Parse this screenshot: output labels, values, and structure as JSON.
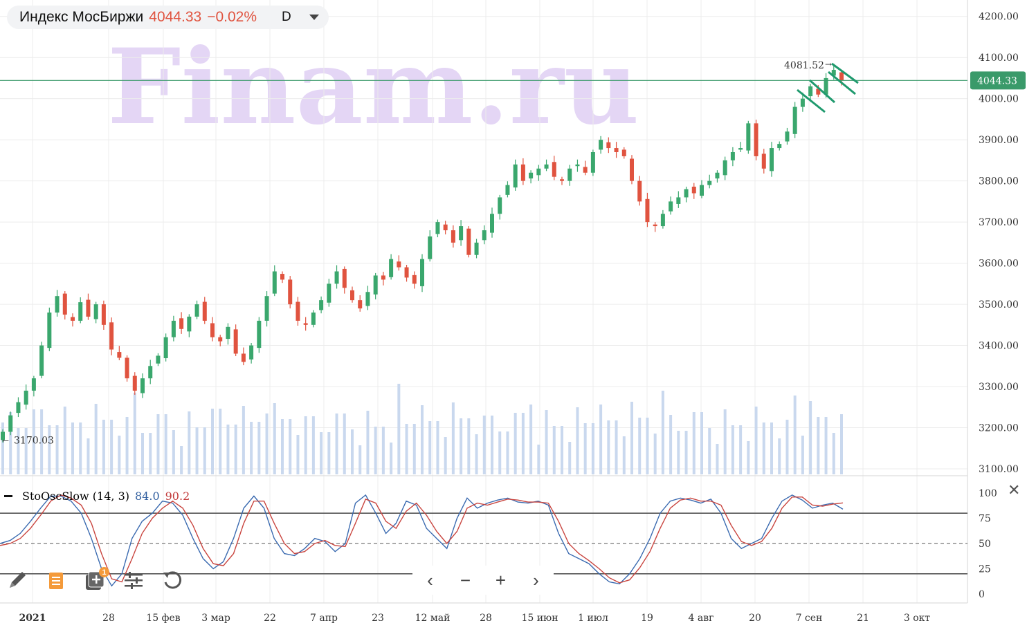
{
  "header": {
    "name": "Индекс МосБиржи",
    "price": "4044.33",
    "change": "−0.02%",
    "period": "D"
  },
  "colors": {
    "up": "#3aa76d",
    "down": "#e0533f",
    "volume": "#c9d8ee",
    "watermark": "#e4d6f5",
    "price_line": "#3a9a6a",
    "k_line": "#3a6ab0",
    "d_line": "#c9453f"
  },
  "watermark": "Finam.ru",
  "annotations": {
    "last_price_badge": "4044.33",
    "high_label": "4081.52",
    "low_label": "3170.03"
  },
  "indicator": {
    "name": "StoOscSlow (14, 3)",
    "k_value": "84.0",
    "d_value": "90.2"
  },
  "toolbar": {
    "icons": [
      "pencil-icon",
      "notes-icon",
      "add-indicator-icon",
      "settings-sliders-icon",
      "reset-icon"
    ],
    "badge": "1"
  },
  "nav": {
    "prev": "‹",
    "zoom_out": "−",
    "zoom_in": "+",
    "next": "›"
  },
  "chart_data": [
    {
      "type": "candlestick",
      "series_values": "daily index closes, approx.",
      "y_axis": {
        "ticks": [
          4200,
          4100,
          4000,
          3900,
          3800,
          3700,
          3600,
          3500,
          3400,
          3300,
          3200,
          3100
        ],
        "range": [
          3090,
          4210
        ]
      },
      "x_axis": {
        "ticks": [
          "2021",
          "28",
          "15 фев",
          "3 мар",
          "22",
          "7 апр",
          "23",
          "12 май",
          "28",
          "15 июн",
          "1 июл",
          "19",
          "4 авг",
          "20",
          "7 сен",
          "21",
          "3 окт"
        ]
      },
      "grid": true,
      "closes": [
        3190,
        3230,
        3262,
        3290,
        3320,
        3400,
        3480,
        3520,
        3475,
        3460,
        3505,
        3470,
        3500,
        3450,
        3390,
        3370,
        3320,
        3290,
        3320,
        3350,
        3375,
        3420,
        3460,
        3440,
        3470,
        3500,
        3460,
        3420,
        3410,
        3445,
        3380,
        3360,
        3400,
        3460,
        3520,
        3580,
        3560,
        3500,
        3460,
        3450,
        3480,
        3510,
        3550,
        3580,
        3540,
        3510,
        3490,
        3530,
        3570,
        3560,
        3610,
        3590,
        3565,
        3550,
        3610,
        3665,
        3700,
        3680,
        3650,
        3690,
        3620,
        3650,
        3680,
        3720,
        3760,
        3790,
        3840,
        3800,
        3820,
        3830,
        3840,
        3810,
        3800,
        3830,
        3840,
        3820,
        3870,
        3900,
        3880,
        3870,
        3860,
        3800,
        3750,
        3700,
        3690,
        3720,
        3750,
        3760,
        3780,
        3770,
        3790,
        3800,
        3820,
        3850,
        3870,
        3880,
        3940,
        3860,
        3830,
        3880,
        3890,
        3920,
        3980,
        4000,
        4030,
        4010,
        4050,
        4070,
        4044
      ]
    },
    {
      "type": "line",
      "title": "StoOscSlow (14, 3)",
      "y_axis": {
        "ticks": [
          100,
          75,
          50,
          25,
          0
        ],
        "range": [
          -10,
          108
        ]
      },
      "reference_lines": [
        80,
        50,
        20
      ],
      "series": [
        {
          "name": "%K",
          "values": [
            50,
            53,
            60,
            72,
            85,
            97,
            97,
            92,
            80,
            55,
            25,
            8,
            20,
            55,
            72,
            80,
            92,
            90,
            78,
            55,
            35,
            25,
            32,
            55,
            85,
            97,
            85,
            55,
            40,
            38,
            45,
            55,
            52,
            42,
            50,
            90,
            98,
            80,
            60,
            70,
            92,
            88,
            65,
            55,
            45,
            75,
            95,
            85,
            90,
            93,
            95,
            91,
            90,
            92,
            88,
            60,
            40,
            35,
            30,
            20,
            12,
            10,
            20,
            35,
            55,
            80,
            92,
            95,
            93,
            90,
            94,
            80,
            55,
            45,
            50,
            55,
            75,
            92,
            98,
            93,
            85,
            88,
            90,
            84
          ]
        },
        {
          "name": "%D",
          "values": [
            48,
            50,
            55,
            65,
            78,
            92,
            98,
            95,
            88,
            70,
            40,
            15,
            12,
            35,
            60,
            75,
            85,
            92,
            85,
            68,
            45,
            30,
            28,
            40,
            70,
            92,
            92,
            70,
            50,
            40,
            42,
            50,
            53,
            48,
            47,
            70,
            94,
            90,
            72,
            65,
            82,
            90,
            78,
            62,
            50,
            62,
            85,
            90,
            88,
            91,
            94,
            93,
            91,
            91,
            90,
            72,
            50,
            40,
            33,
            25,
            16,
            11,
            14,
            26,
            42,
            65,
            85,
            93,
            95,
            92,
            92,
            88,
            68,
            52,
            48,
            52,
            65,
            85,
            96,
            96,
            88,
            87,
            89,
            90.2
          ]
        }
      ]
    }
  ]
}
